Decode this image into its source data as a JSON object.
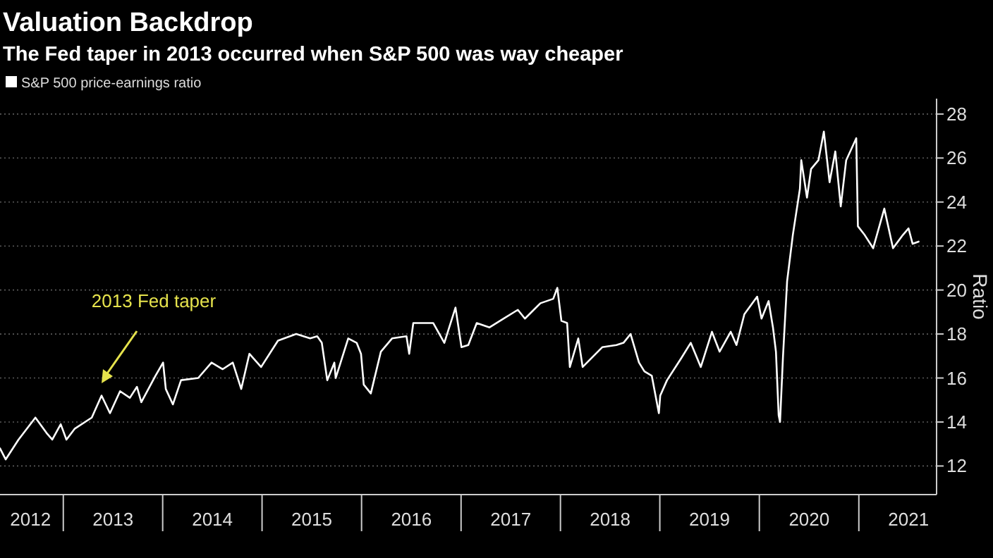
{
  "chart_data": {
    "type": "line",
    "title": "Valuation Backdrop",
    "subtitle": "The Fed taper in 2013 occurred when S&P 500 was way cheaper",
    "ylabel": "Ratio",
    "legend": "top left",
    "grid": "y",
    "marker": "none",
    "line_style": "solid",
    "annotations": [
      "2013 Fed taper"
    ],
    "xlim": [
      "2012-05-12",
      "2021-10-12"
    ],
    "xticks": [
      {
        "value": "2012-09-01",
        "label": "2012"
      },
      {
        "value": "2013-07-01",
        "label": "2013"
      },
      {
        "value": "2014-07-01",
        "label": "2014"
      },
      {
        "value": "2015-07-01",
        "label": "2015"
      },
      {
        "value": "2016-07-01",
        "label": "2016"
      },
      {
        "value": "2017-07-01",
        "label": "2017"
      },
      {
        "value": "2018-07-01",
        "label": "2018"
      },
      {
        "value": "2019-07-01",
        "label": "2019"
      },
      {
        "value": "2020-07-01",
        "label": "2020"
      },
      {
        "value": "2021-07-01",
        "label": "2021"
      }
    ],
    "ylim": [
      10.7,
      28.7
    ],
    "yticks": [
      12,
      14,
      16,
      18,
      20,
      22,
      24,
      26,
      28
    ],
    "x": [
      "2012-05-12",
      "2012-06-02",
      "2012-07-19",
      "2012-09-19",
      "2012-10-30",
      "2012-11-20",
      "2012-12-21",
      "2013-01-11",
      "2013-02-11",
      "2013-04-14",
      "2013-05-20",
      "2013-06-20",
      "2013-07-27",
      "2013-09-01",
      "2013-09-27",
      "2013-10-13",
      "2013-12-04",
      "2014-01-01",
      "2014-01-11",
      "2014-02-06",
      "2014-03-08",
      "2014-05-10",
      "2014-06-28",
      "2014-08-08",
      "2014-09-14",
      "2014-10-15",
      "2014-11-14",
      "2014-12-27",
      "2015-02-27",
      "2015-05-05",
      "2015-06-25",
      "2015-07-21",
      "2015-08-07",
      "2015-08-27",
      "2015-09-22",
      "2015-09-27",
      "2015-11-12",
      "2015-12-13",
      "2015-12-29",
      "2016-01-08",
      "2016-02-03",
      "2016-03-11",
      "2016-04-21",
      "2016-06-13",
      "2016-06-23",
      "2016-07-08",
      "2016-09-19",
      "2016-10-30",
      "2016-12-10",
      "2017-01-01",
      "2017-01-26",
      "2017-02-26",
      "2017-04-14",
      "2017-06-05",
      "2017-07-27",
      "2017-08-22",
      "2017-10-18",
      "2017-12-04",
      "2017-12-19",
      "2018-01-03",
      "2018-01-24",
      "2018-02-03",
      "2018-03-06",
      "2018-03-22",
      "2018-06-02",
      "2018-07-24",
      "2018-08-19",
      "2018-09-14",
      "2018-10-15",
      "2018-11-04",
      "2018-12-01",
      "2018-12-27",
      "2019-01-01",
      "2019-01-26",
      "2019-03-19",
      "2019-04-23",
      "2019-05-30",
      "2019-07-10",
      "2019-08-07",
      "2019-09-17",
      "2019-10-08",
      "2019-11-06",
      "2019-12-23",
      "2020-01-08",
      "2020-02-03",
      "2020-02-19",
      "2020-03-01",
      "2020-03-11",
      "2020-03-16",
      "2020-03-27",
      "2020-04-11",
      "2020-05-02",
      "2020-05-28",
      "2020-06-02",
      "2020-06-23",
      "2020-07-08",
      "2020-08-04",
      "2020-08-24",
      "2020-09-14",
      "2020-10-05",
      "2020-10-25",
      "2020-11-14",
      "2020-12-21",
      "2020-12-27",
      "2021-01-21",
      "2021-02-21",
      "2021-04-03",
      "2021-05-05",
      "2021-06-10",
      "2021-07-01",
      "2021-07-16",
      "2021-08-07"
    ],
    "series": [
      {
        "name": "S&P 500 price-earnings ratio",
        "color": "#ffffff",
        "values": [
          12.8,
          12.3,
          13.2,
          14.2,
          13.5,
          13.2,
          13.9,
          13.2,
          13.7,
          14.2,
          15.2,
          14.4,
          15.4,
          15.1,
          15.6,
          14.9,
          16.1,
          16.7,
          15.5,
          14.8,
          15.9,
          16.0,
          16.7,
          16.4,
          16.7,
          15.5,
          17.1,
          16.5,
          17.7,
          18.0,
          17.8,
          17.9,
          17.6,
          15.9,
          16.7,
          16.0,
          17.8,
          17.6,
          17.1,
          15.7,
          15.3,
          17.2,
          17.8,
          17.9,
          17.1,
          18.5,
          18.5,
          17.6,
          19.2,
          17.4,
          17.5,
          18.5,
          18.3,
          18.7,
          19.1,
          18.7,
          19.4,
          19.6,
          20.1,
          18.6,
          18.5,
          16.5,
          17.8,
          16.5,
          17.4,
          17.5,
          17.6,
          18.0,
          16.7,
          16.3,
          16.1,
          14.4,
          15.2,
          15.9,
          16.9,
          17.6,
          16.5,
          18.1,
          17.2,
          18.1,
          17.5,
          18.9,
          19.7,
          18.7,
          19.5,
          18.3,
          17.2,
          14.3,
          14.0,
          17.0,
          20.4,
          22.5,
          24.6,
          25.9,
          24.2,
          25.5,
          25.9,
          27.2,
          24.9,
          26.3,
          23.8,
          25.9,
          26.9,
          22.9,
          22.5,
          21.9,
          23.7,
          21.9,
          22.5,
          22.8,
          22.1,
          22.2
        ]
      }
    ]
  }
}
